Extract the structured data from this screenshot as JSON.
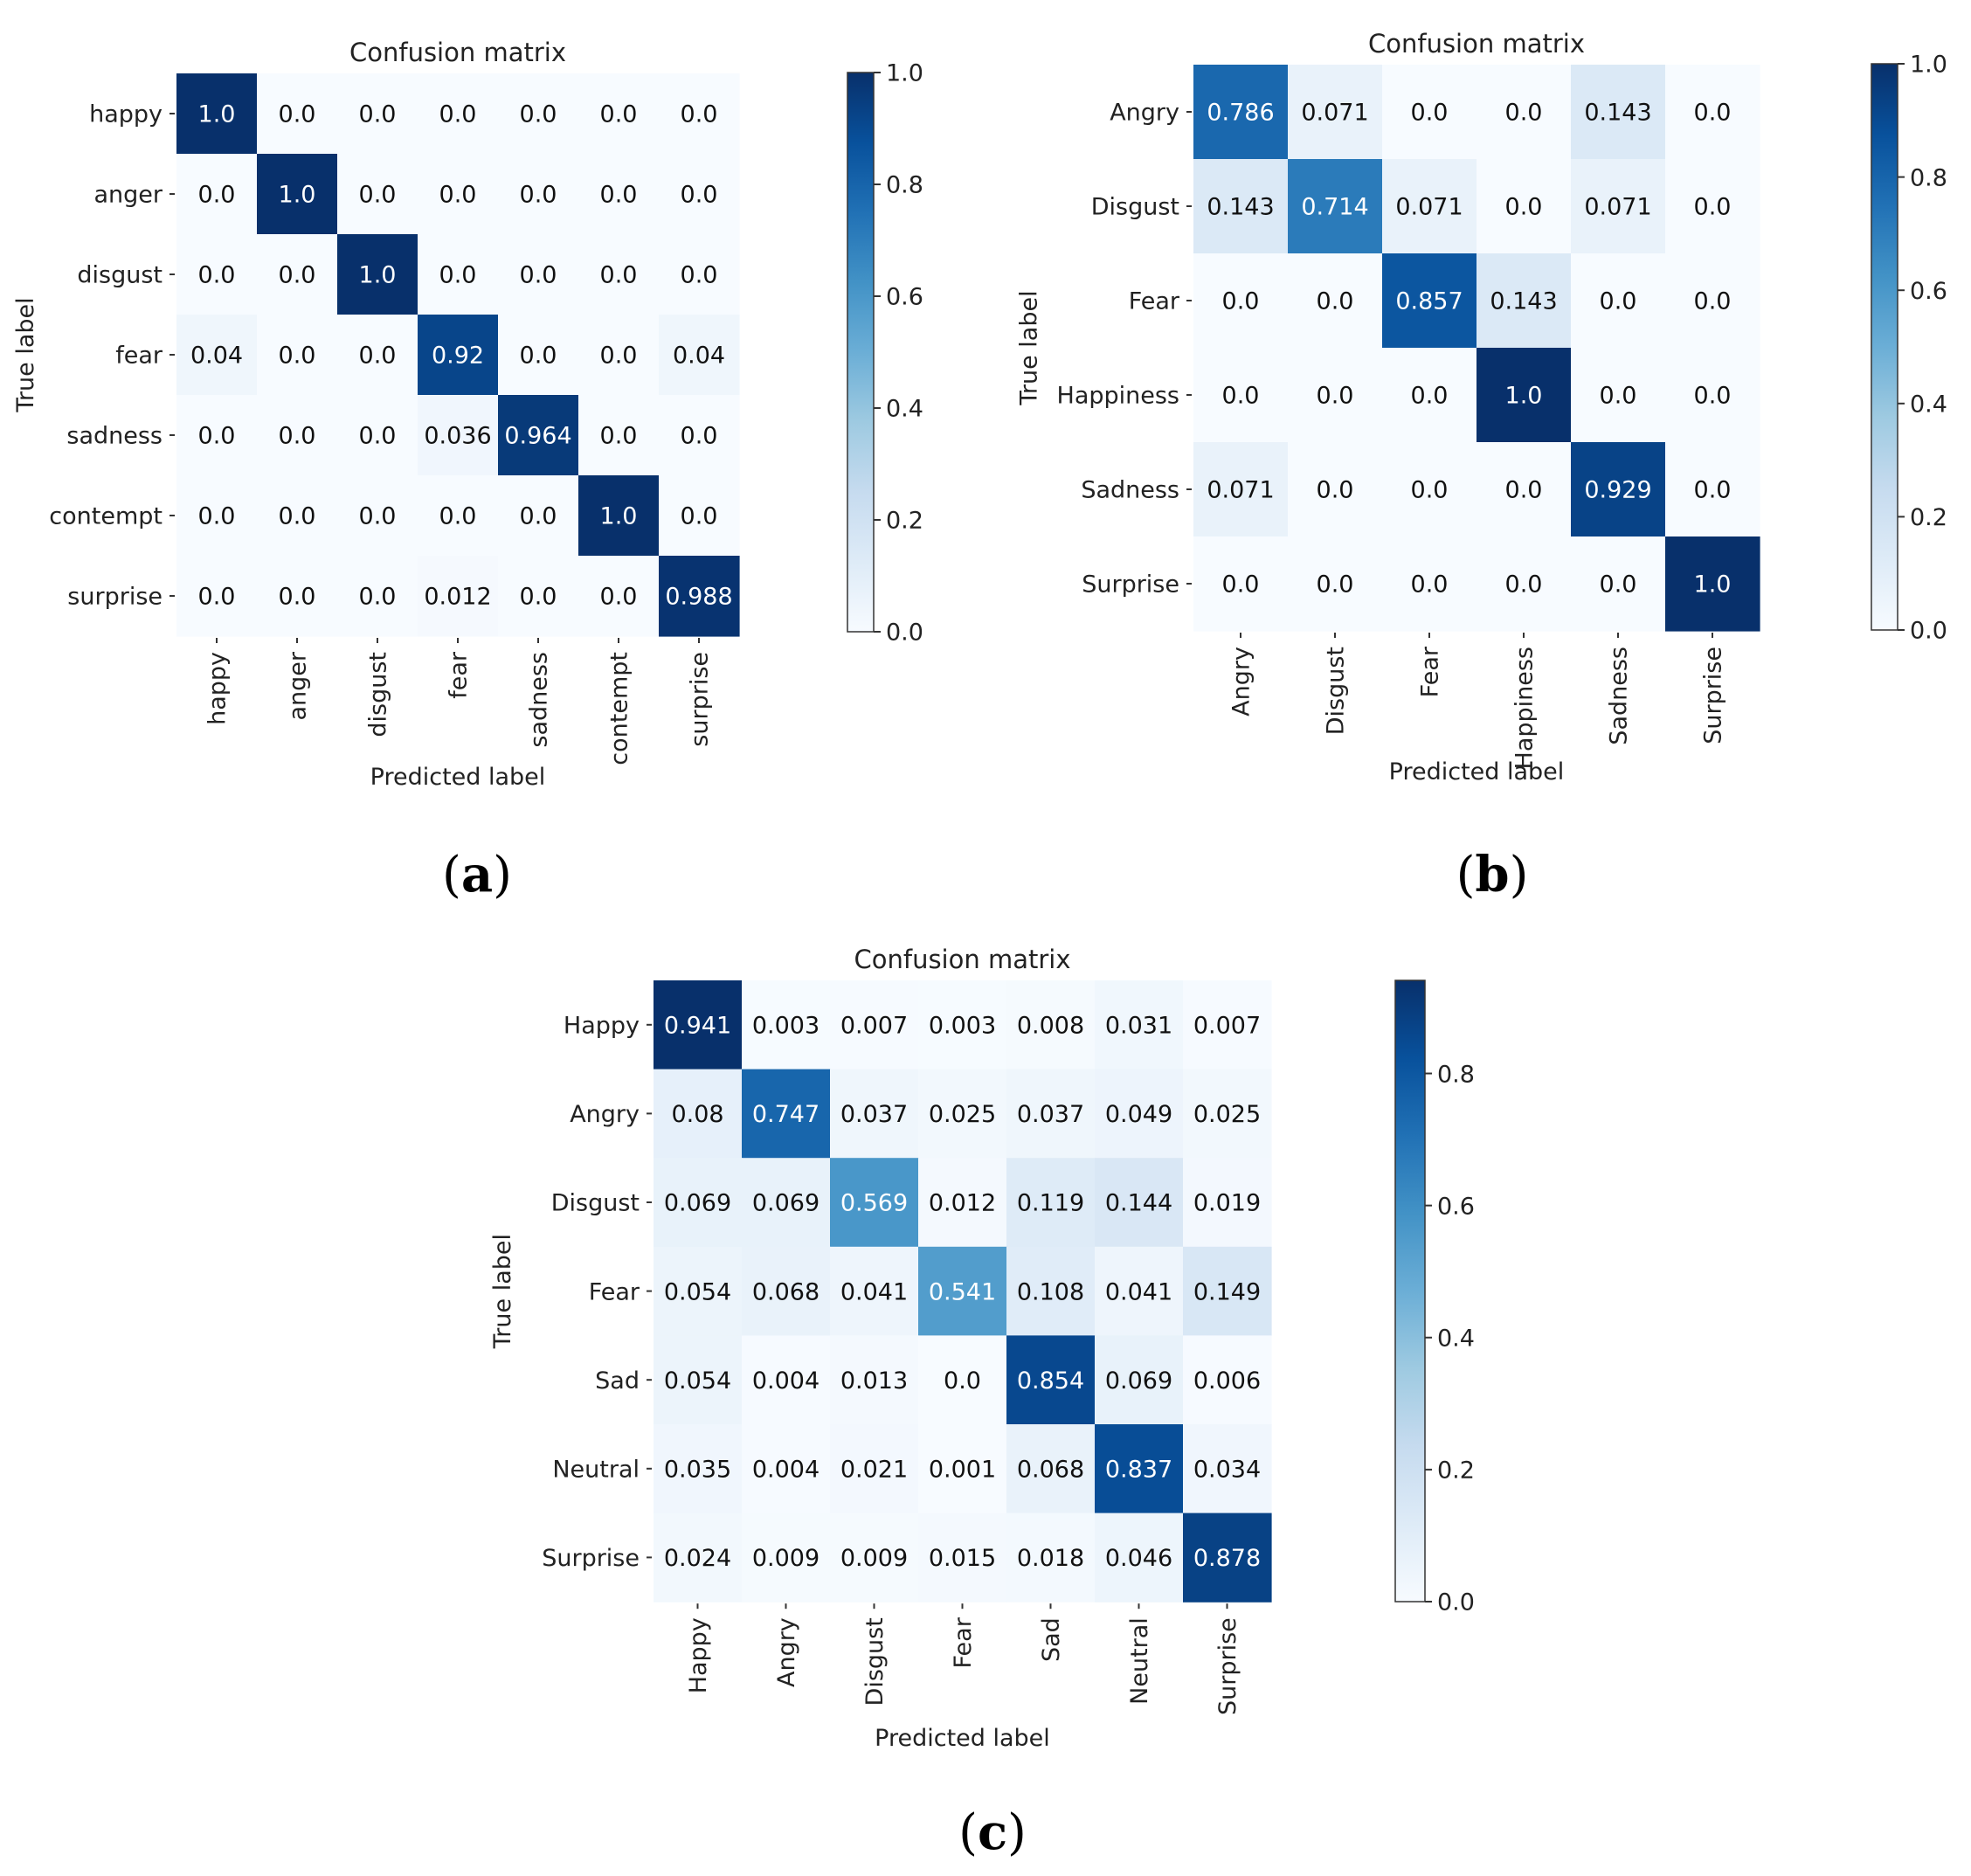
{
  "chart_data": [
    {
      "panel": "(a)",
      "type": "heatmap",
      "title": "Confusion matrix",
      "xlabel": "Predicted label",
      "ylabel": "True label",
      "rows": [
        "happy",
        "anger",
        "disgust",
        "fear",
        "sadness",
        "contempt",
        "surprise"
      ],
      "cols": [
        "happy",
        "anger",
        "disgust",
        "fear",
        "sadness",
        "contempt",
        "surprise"
      ],
      "values": [
        [
          "1.0",
          "0.0",
          "0.0",
          "0.0",
          "0.0",
          "0.0",
          "0.0"
        ],
        [
          "0.0",
          "1.0",
          "0.0",
          "0.0",
          "0.0",
          "0.0",
          "0.0"
        ],
        [
          "0.0",
          "0.0",
          "1.0",
          "0.0",
          "0.0",
          "0.0",
          "0.0"
        ],
        [
          "0.04",
          "0.0",
          "0.0",
          "0.92",
          "0.0",
          "0.0",
          "0.04"
        ],
        [
          "0.0",
          "0.0",
          "0.0",
          "0.036",
          "0.964",
          "0.0",
          "0.0"
        ],
        [
          "0.0",
          "0.0",
          "0.0",
          "0.0",
          "0.0",
          "1.0",
          "0.0"
        ],
        [
          "0.0",
          "0.0",
          "0.0",
          "0.012",
          "0.0",
          "0.0",
          "0.988"
        ]
      ],
      "colorbar": {
        "min": 0.0,
        "max": 1.0,
        "ticks": [
          "0.0",
          "0.2",
          "0.4",
          "0.6",
          "0.8",
          "1.0"
        ]
      },
      "colormap": "Blues"
    },
    {
      "panel": "(b)",
      "type": "heatmap",
      "title": "Confusion matrix",
      "xlabel": "Predicted label",
      "ylabel": "True label",
      "rows": [
        "Angry",
        "Disgust",
        "Fear",
        "Happiness",
        "Sadness",
        "Surprise"
      ],
      "cols": [
        "Angry",
        "Disgust",
        "Fear",
        "Happiness",
        "Sadness",
        "Surprise"
      ],
      "values": [
        [
          "0.786",
          "0.071",
          "0.0",
          "0.0",
          "0.143",
          "0.0"
        ],
        [
          "0.143",
          "0.714",
          "0.071",
          "0.0",
          "0.071",
          "0.0"
        ],
        [
          "0.0",
          "0.0",
          "0.857",
          "0.143",
          "0.0",
          "0.0"
        ],
        [
          "0.0",
          "0.0",
          "0.0",
          "1.0",
          "0.0",
          "0.0"
        ],
        [
          "0.071",
          "0.0",
          "0.0",
          "0.0",
          "0.929",
          "0.0"
        ],
        [
          "0.0",
          "0.0",
          "0.0",
          "0.0",
          "0.0",
          "1.0"
        ]
      ],
      "colorbar": {
        "min": 0.0,
        "max": 1.0,
        "ticks": [
          "0.0",
          "0.2",
          "0.4",
          "0.6",
          "0.8",
          "1.0"
        ]
      },
      "colormap": "Blues"
    },
    {
      "panel": "(c)",
      "type": "heatmap",
      "title": "Confusion matrix",
      "xlabel": "Predicted label",
      "ylabel": "True label",
      "rows": [
        "Happy",
        "Angry",
        "Disgust",
        "Fear",
        "Sad",
        "Neutral",
        "Surprise"
      ],
      "cols": [
        "Happy",
        "Angry",
        "Disgust",
        "Fear",
        "Sad",
        "Neutral",
        "Surprise"
      ],
      "values": [
        [
          "0.941",
          "0.003",
          "0.007",
          "0.003",
          "0.008",
          "0.031",
          "0.007"
        ],
        [
          "0.08",
          "0.747",
          "0.037",
          "0.025",
          "0.037",
          "0.049",
          "0.025"
        ],
        [
          "0.069",
          "0.069",
          "0.569",
          "0.012",
          "0.119",
          "0.144",
          "0.019"
        ],
        [
          "0.054",
          "0.068",
          "0.041",
          "0.541",
          "0.108",
          "0.041",
          "0.149"
        ],
        [
          "0.054",
          "0.004",
          "0.013",
          "0.0",
          "0.854",
          "0.069",
          "0.006"
        ],
        [
          "0.035",
          "0.004",
          "0.021",
          "0.001",
          "0.068",
          "0.837",
          "0.034"
        ],
        [
          "0.024",
          "0.009",
          "0.009",
          "0.015",
          "0.018",
          "0.046",
          "0.878"
        ]
      ],
      "colorbar": {
        "min": 0.0,
        "max": 0.941,
        "ticks": [
          "0.0",
          "0.2",
          "0.4",
          "0.6",
          "0.8"
        ]
      },
      "colormap": "Blues"
    }
  ]
}
